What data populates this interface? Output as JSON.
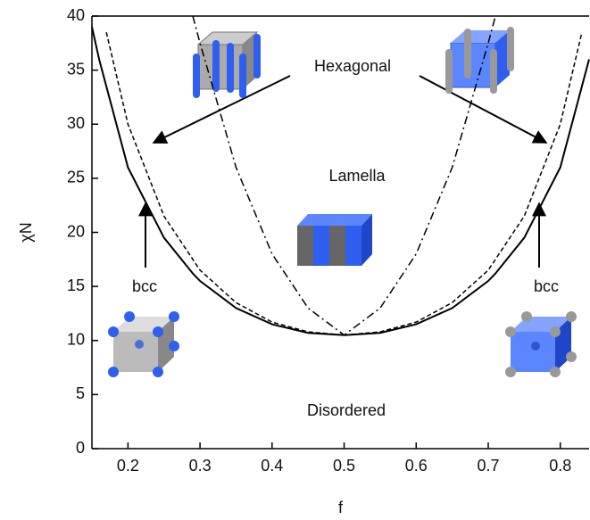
{
  "chart_data": {
    "type": "line",
    "xlabel": "f",
    "ylabel": "χN",
    "x": [
      0.15,
      0.16,
      0.17,
      0.2,
      0.25,
      0.29,
      0.3,
      0.35,
      0.4,
      0.45,
      0.5,
      0.55,
      0.6,
      0.65,
      0.7,
      0.71,
      0.75,
      0.8,
      0.83,
      0.84
    ],
    "series": [
      {
        "color": "#000000",
        "linestyle": "solid",
        "values": [
          39,
          36,
          33.5,
          26,
          19.5,
          16.2,
          15.5,
          13,
          11.5,
          10.7,
          10.5,
          10.7,
          11.5,
          13,
          15.5,
          16.2,
          19.5,
          26,
          33.5,
          36
        ]
      },
      {
        "color": "#000000",
        "linestyle": "dashed",
        "values": [
          null,
          null,
          38.5,
          30,
          21.5,
          17.5,
          16.5,
          13.5,
          11.7,
          10.8,
          10.5,
          10.8,
          11.7,
          13.5,
          16.5,
          17.5,
          21.5,
          30,
          38.5,
          null
        ]
      },
      {
        "color": "#000000",
        "linestyle": "dashdot",
        "values": [
          null,
          null,
          null,
          null,
          null,
          40,
          37.5,
          26,
          18,
          13,
          10.5,
          13,
          18,
          26,
          37.5,
          40,
          null,
          null,
          null,
          null
        ]
      }
    ],
    "xlim": [
      0.15,
      0.84
    ],
    "ylim": [
      0,
      40
    ],
    "xticks": [
      0.2,
      0.3,
      0.4,
      0.5,
      0.6,
      0.7,
      0.8
    ],
    "yticks": [
      0,
      5,
      10,
      15,
      20,
      25,
      30,
      35,
      40
    ],
    "annotations": [
      "Hexagonal",
      "Lamella",
      "Disordered",
      "bcc",
      "bcc"
    ]
  }
}
